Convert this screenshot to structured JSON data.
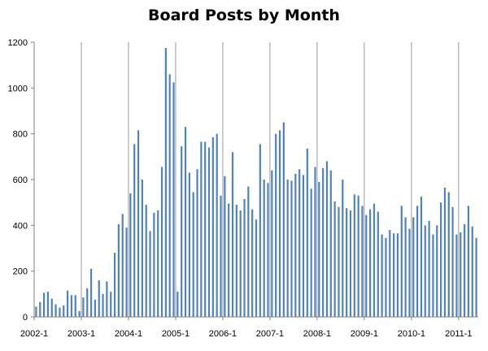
{
  "chart_data": {
    "type": "bar",
    "title": "Board Posts by Month",
    "xlabel": "",
    "ylabel": "",
    "ylim": [
      0,
      1200
    ],
    "yticks": [
      0,
      200,
      400,
      600,
      800,
      1000,
      1200
    ],
    "x_tick_labels": [
      "2002-1",
      "2003-1",
      "2004-1",
      "2005-1",
      "2006-1",
      "2007-1",
      "2008-1",
      "2009-1",
      "2010-1",
      "2011-1"
    ],
    "start": "2002-1",
    "grid": "vertical gridlines at each year",
    "legend": "none",
    "bar_color": "#4f81bd",
    "values": [
      45,
      65,
      105,
      110,
      80,
      55,
      40,
      50,
      115,
      95,
      95,
      25,
      85,
      125,
      210,
      75,
      160,
      100,
      155,
      110,
      280,
      405,
      450,
      390,
      540,
      755,
      815,
      600,
      490,
      375,
      455,
      465,
      655,
      1175,
      1060,
      1025,
      110,
      745,
      830,
      630,
      545,
      645,
      765,
      765,
      740,
      785,
      800,
      530,
      615,
      495,
      720,
      490,
      465,
      515,
      570,
      470,
      425,
      755,
      600,
      585,
      640,
      800,
      815,
      850,
      600,
      595,
      625,
      645,
      620,
      735,
      560,
      655,
      590,
      650,
      680,
      640,
      505,
      480,
      600,
      475,
      465,
      535,
      530,
      485,
      445,
      470,
      495,
      460,
      360,
      345,
      380,
      365,
      365,
      485,
      435,
      385,
      435,
      485,
      525,
      400,
      420,
      360,
      400,
      500,
      565,
      545,
      480,
      360,
      370,
      405,
      485,
      395,
      345
    ]
  }
}
